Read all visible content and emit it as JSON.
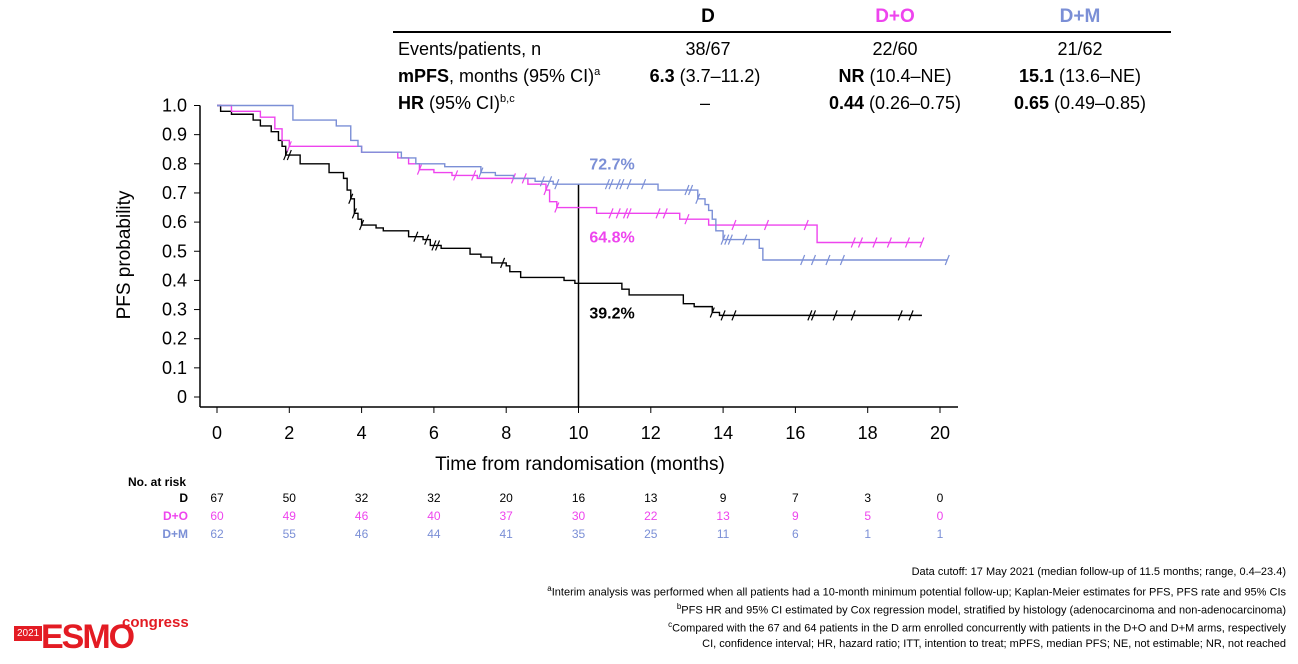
{
  "colors": {
    "D": "#000000",
    "D+O": "#ee44ee",
    "D+M": "#7b8fd6"
  },
  "table": {
    "headers": [
      "D",
      "D+O",
      "D+M"
    ],
    "row1": {
      "label": "Events/patients, n",
      "values": [
        "38/67",
        "22/60",
        "21/62"
      ]
    },
    "row2": {
      "label_bold": "mPFS",
      "label_rest": ", months (95% CI)",
      "label_sup": "a",
      "cells": [
        {
          "bold": "6.3",
          "rest": " (3.7–11.2)"
        },
        {
          "bold": "NR",
          "rest": " (10.4–NE)"
        },
        {
          "bold": "15.1",
          "rest": " (13.6–NE)"
        }
      ]
    },
    "row3": {
      "label_bold": "HR",
      "label_rest": " (95% CI)",
      "label_sup": "b,c",
      "cells": [
        {
          "bold": "",
          "rest": "–"
        },
        {
          "bold": "0.44",
          "rest": " (0.26–0.75)"
        },
        {
          "bold": "0.65",
          "rest": " (0.49–0.85)"
        }
      ]
    }
  },
  "chart_data": {
    "type": "line",
    "subtype": "kaplan-meier",
    "xlabel": "Time from randomisation (months)",
    "ylabel": "PFS probability",
    "xlim": [
      0,
      20
    ],
    "ylim": [
      0,
      1
    ],
    "x_ticks": [
      "0",
      "2",
      "4",
      "6",
      "8",
      "10",
      "12",
      "14",
      "16",
      "18",
      "20"
    ],
    "y_ticks": [
      "0",
      "0.1",
      "0.2",
      "0.3",
      "0.4",
      "0.5",
      "0.6",
      "0.7",
      "0.8",
      "0.9",
      "1.0"
    ],
    "reference_line_x": 10,
    "annotations": [
      {
        "text": "72.7%",
        "series": "D+M",
        "x": 10.3,
        "y": 0.78
      },
      {
        "text": "64.8%",
        "series": "D+O",
        "x": 10.3,
        "y": 0.53
      },
      {
        "text": "39.2%",
        "series": "D",
        "x": 10.3,
        "y": 0.27
      }
    ],
    "series": [
      {
        "name": "D",
        "points": [
          [
            0,
            1
          ],
          [
            0.1,
            0.98
          ],
          [
            0.4,
            0.97
          ],
          [
            1,
            0.95
          ],
          [
            1.2,
            0.93
          ],
          [
            1.5,
            0.91
          ],
          [
            1.7,
            0.88
          ],
          [
            1.8,
            0.86
          ],
          [
            1.9,
            0.83
          ],
          [
            2.3,
            0.8
          ],
          [
            2.9,
            0.8
          ],
          [
            3.1,
            0.77
          ],
          [
            3.5,
            0.75
          ],
          [
            3.6,
            0.71
          ],
          [
            3.7,
            0.68
          ],
          [
            3.8,
            0.63
          ],
          [
            3.9,
            0.61
          ],
          [
            4.0,
            0.59
          ],
          [
            4.4,
            0.58
          ],
          [
            4.6,
            0.57
          ],
          [
            5.3,
            0.55
          ],
          [
            5.7,
            0.54
          ],
          [
            5.9,
            0.52
          ],
          [
            6.2,
            0.51
          ],
          [
            6.5,
            0.51
          ],
          [
            7.0,
            0.49
          ],
          [
            7.3,
            0.48
          ],
          [
            7.6,
            0.46
          ],
          [
            8.0,
            0.45
          ],
          [
            8.1,
            0.43
          ],
          [
            8.4,
            0.41
          ],
          [
            8.6,
            0.41
          ],
          [
            9.1,
            0.41
          ],
          [
            9.6,
            0.4
          ],
          [
            9.9,
            0.39
          ],
          [
            11.0,
            0.39
          ],
          [
            11.2,
            0.37
          ],
          [
            11.4,
            0.35
          ],
          [
            12.8,
            0.35
          ],
          [
            12.9,
            0.32
          ],
          [
            13.2,
            0.31
          ],
          [
            13.6,
            0.31
          ],
          [
            13.7,
            0.29
          ],
          [
            13.9,
            0.28
          ],
          [
            19.5,
            0.28
          ]
        ],
        "censor_x": [
          1.9,
          2.0,
          3.7,
          3.8,
          4.0,
          5.5,
          5.8,
          6.0,
          6.1,
          7.9,
          13.7,
          14.0,
          14.3,
          16.4,
          16.5,
          17.1,
          17.6,
          18.9,
          19.2
        ]
      },
      {
        "name": "D+O",
        "points": [
          [
            0,
            1
          ],
          [
            0.4,
            0.98
          ],
          [
            0.8,
            0.98
          ],
          [
            1.2,
            0.96
          ],
          [
            1.6,
            0.92
          ],
          [
            1.8,
            0.88
          ],
          [
            2.0,
            0.86
          ],
          [
            2.6,
            0.86
          ],
          [
            2.8,
            0.86
          ],
          [
            3.6,
            0.86
          ],
          [
            4.0,
            0.84
          ],
          [
            4.5,
            0.84
          ],
          [
            5.0,
            0.82
          ],
          [
            5.3,
            0.8
          ],
          [
            5.6,
            0.78
          ],
          [
            6.0,
            0.77
          ],
          [
            6.5,
            0.76
          ],
          [
            7.2,
            0.75
          ],
          [
            8.2,
            0.75
          ],
          [
            8.6,
            0.73
          ],
          [
            9.1,
            0.71
          ],
          [
            9.2,
            0.67
          ],
          [
            9.4,
            0.65
          ],
          [
            9.6,
            0.65
          ],
          [
            10.0,
            0.65
          ],
          [
            10.5,
            0.63
          ],
          [
            11.2,
            0.63
          ],
          [
            12.4,
            0.63
          ],
          [
            12.8,
            0.61
          ],
          [
            13.3,
            0.61
          ],
          [
            13.6,
            0.59
          ],
          [
            13.9,
            0.59
          ],
          [
            16.6,
            0.59
          ],
          [
            16.6,
            0.53
          ],
          [
            19.5,
            0.53
          ]
        ],
        "censor_x": [
          2.0,
          5.6,
          6.6,
          7.1,
          8.2,
          8.5,
          9.1,
          9.4,
          10.9,
          11.1,
          11.3,
          11.4,
          12.2,
          12.4,
          13.0,
          14.3,
          15.2,
          16.3,
          17.6,
          17.8,
          18.2,
          18.6,
          19.1,
          19.5
        ]
      },
      {
        "name": "D+M",
        "points": [
          [
            0,
            1
          ],
          [
            0.2,
            1.0
          ],
          [
            2.0,
            1.0
          ],
          [
            2.1,
            0.95
          ],
          [
            2.8,
            0.95
          ],
          [
            3.3,
            0.93
          ],
          [
            3.6,
            0.93
          ],
          [
            3.7,
            0.88
          ],
          [
            3.9,
            0.86
          ],
          [
            4.0,
            0.84
          ],
          [
            4.9,
            0.84
          ],
          [
            5.1,
            0.82
          ],
          [
            5.5,
            0.8
          ],
          [
            6.0,
            0.8
          ],
          [
            6.3,
            0.79
          ],
          [
            6.7,
            0.79
          ],
          [
            7.3,
            0.77
          ],
          [
            7.7,
            0.76
          ],
          [
            8.2,
            0.75
          ],
          [
            8.8,
            0.74
          ],
          [
            9.3,
            0.73
          ],
          [
            10.0,
            0.73
          ],
          [
            11.8,
            0.73
          ],
          [
            12.2,
            0.71
          ],
          [
            12.9,
            0.71
          ],
          [
            13.3,
            0.68
          ],
          [
            13.5,
            0.66
          ],
          [
            13.6,
            0.64
          ],
          [
            13.7,
            0.61
          ],
          [
            13.8,
            0.57
          ],
          [
            14.0,
            0.54
          ],
          [
            14.8,
            0.54
          ],
          [
            15.0,
            0.51
          ],
          [
            15.1,
            0.47
          ],
          [
            20.2,
            0.47
          ]
        ],
        "censor_x": [
          7.3,
          9.0,
          9.2,
          9.4,
          10.8,
          10.9,
          11.1,
          11.2,
          11.4,
          11.8,
          13.0,
          13.1,
          13.3,
          14.0,
          14.1,
          14.2,
          14.6,
          16.2,
          16.5,
          16.9,
          17.3,
          20.2
        ]
      }
    ]
  },
  "risk_table": {
    "title": "No. at risk",
    "x": [
      "0",
      "2",
      "4",
      "6",
      "8",
      "10",
      "12",
      "14",
      "16",
      "18",
      "20"
    ],
    "rows": [
      {
        "label": "D",
        "values": [
          "67",
          "50",
          "32",
          "32",
          "20",
          "16",
          "13",
          "9",
          "7",
          "3",
          "0"
        ]
      },
      {
        "label": "D+O",
        "values": [
          "60",
          "49",
          "46",
          "40",
          "37",
          "30",
          "22",
          "13",
          "9",
          "5",
          "0"
        ]
      },
      {
        "label": "D+M",
        "values": [
          "62",
          "55",
          "46",
          "44",
          "41",
          "35",
          "25",
          "11",
          "6",
          "1",
          "1"
        ]
      }
    ]
  },
  "footnotes": {
    "cutoff": "Data cutoff: 17 May 2021 (median follow-up of 11.5 months; range, 0.4–23.4)",
    "a": {
      "mark": "a",
      "text": "Interim analysis was performed when all patients had a 10-month minimum potential follow-up; Kaplan-Meier estimates for PFS, PFS rate and 95% CIs"
    },
    "b": {
      "mark": "b",
      "text": "PFS HR and 95% CI estimated by Cox regression model, stratified by histology (adenocarcinoma and non-adenocarcinoma)"
    },
    "c": {
      "mark": "c",
      "text": "Compared with the 67 and 64 patients in the D arm enrolled concurrently with patients in the D+O and D+M arms, respectively"
    },
    "abbr": "CI, confidence interval; HR, hazard ratio; ITT, intention to treat; mPFS, median PFS; NE, not estimable; NR, not reached"
  },
  "logo": {
    "year": "2021",
    "name": "ESMO",
    "suffix": "congress"
  }
}
